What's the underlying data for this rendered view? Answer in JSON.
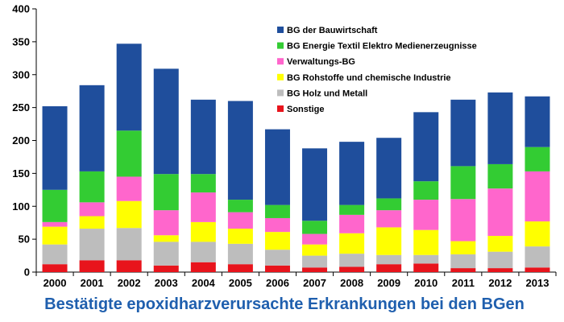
{
  "chart_data": {
    "type": "bar",
    "stacked": true,
    "title": "Bestätigte epoxidharzverursachte Erkrankungen bei den BGen",
    "xlabel": "",
    "ylabel": "",
    "ylim": [
      0,
      400
    ],
    "yticks": [
      "0",
      "50",
      "100",
      "150",
      "200",
      "250",
      "300",
      "350",
      "400"
    ],
    "grid": false,
    "legend_position": "top-right",
    "categories": [
      "2000",
      "2001",
      "2002",
      "2003",
      "2004",
      "2005",
      "2006",
      "2007",
      "2008",
      "2009",
      "2010",
      "2011",
      "2012",
      "2013"
    ],
    "series": [
      {
        "name": "Sonstige",
        "color": "#e8141c",
        "values": [
          12,
          18,
          18,
          10,
          15,
          12,
          10,
          7,
          8,
          12,
          13,
          6,
          6,
          7
        ]
      },
      {
        "name": "BG Holz und Metall",
        "color": "#bdbdbd",
        "values": [
          30,
          48,
          49,
          36,
          31,
          31,
          24,
          18,
          20,
          14,
          13,
          21,
          25,
          32
        ]
      },
      {
        "name": "BG Rohstoffe und chemische Industrie",
        "color": "#ffff00",
        "values": [
          27,
          19,
          41,
          10,
          30,
          23,
          27,
          17,
          31,
          42,
          38,
          20,
          24,
          38
        ]
      },
      {
        "name": "Verwaltungs-BG",
        "color": "#ff66cc",
        "values": [
          7,
          21,
          37,
          38,
          45,
          25,
          21,
          16,
          28,
          26,
          46,
          64,
          72,
          76
        ]
      },
      {
        "name": "BG Energie Textil Elektro Medienerzeugnisse",
        "color": "#33cc33",
        "values": [
          49,
          47,
          70,
          55,
          28,
          19,
          20,
          20,
          15,
          18,
          28,
          50,
          37,
          37
        ]
      },
      {
        "name": "BG der Bauwirtschaft",
        "color": "#1f4e9c",
        "values": [
          127,
          131,
          132,
          160,
          113,
          150,
          115,
          110,
          96,
          92,
          105,
          101,
          109,
          77
        ]
      }
    ]
  }
}
